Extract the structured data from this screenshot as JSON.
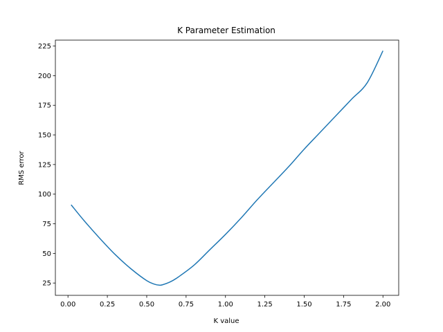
{
  "chart_data": {
    "type": "line",
    "title": "K Parameter Estimation",
    "xlabel": "K value",
    "ylabel": "RMS error",
    "xlim": [
      -0.08,
      2.1
    ],
    "ylim": [
      14.6,
      230.0
    ],
    "grid": false,
    "x_ticks": [
      0.0,
      0.25,
      0.5,
      0.75,
      1.0,
      1.25,
      1.5,
      1.75,
      2.0
    ],
    "x_tick_labels": [
      "0.00",
      "0.25",
      "0.50",
      "0.75",
      "1.00",
      "1.25",
      "1.50",
      "1.75",
      "2.00"
    ],
    "y_ticks": [
      25,
      50,
      75,
      100,
      125,
      150,
      175,
      200,
      225
    ],
    "y_tick_labels": [
      "25",
      "50",
      "75",
      "100",
      "125",
      "150",
      "175",
      "200",
      "225"
    ],
    "series": [
      {
        "color": "#1f77b4",
        "x": [
          0.02,
          0.1,
          0.2,
          0.3,
          0.4,
          0.5,
          0.55,
          0.58,
          0.6,
          0.65,
          0.7,
          0.8,
          0.9,
          1.0,
          1.1,
          1.2,
          1.3,
          1.4,
          1.5,
          1.6,
          1.7,
          1.8,
          1.9,
          2.0
        ],
        "y": [
          91,
          78,
          63,
          49,
          37,
          27,
          24,
          23.2,
          23.5,
          26,
          30,
          40,
          53,
          66,
          80,
          95,
          109,
          123,
          138,
          152,
          166,
          180,
          194,
          221
        ]
      }
    ]
  }
}
